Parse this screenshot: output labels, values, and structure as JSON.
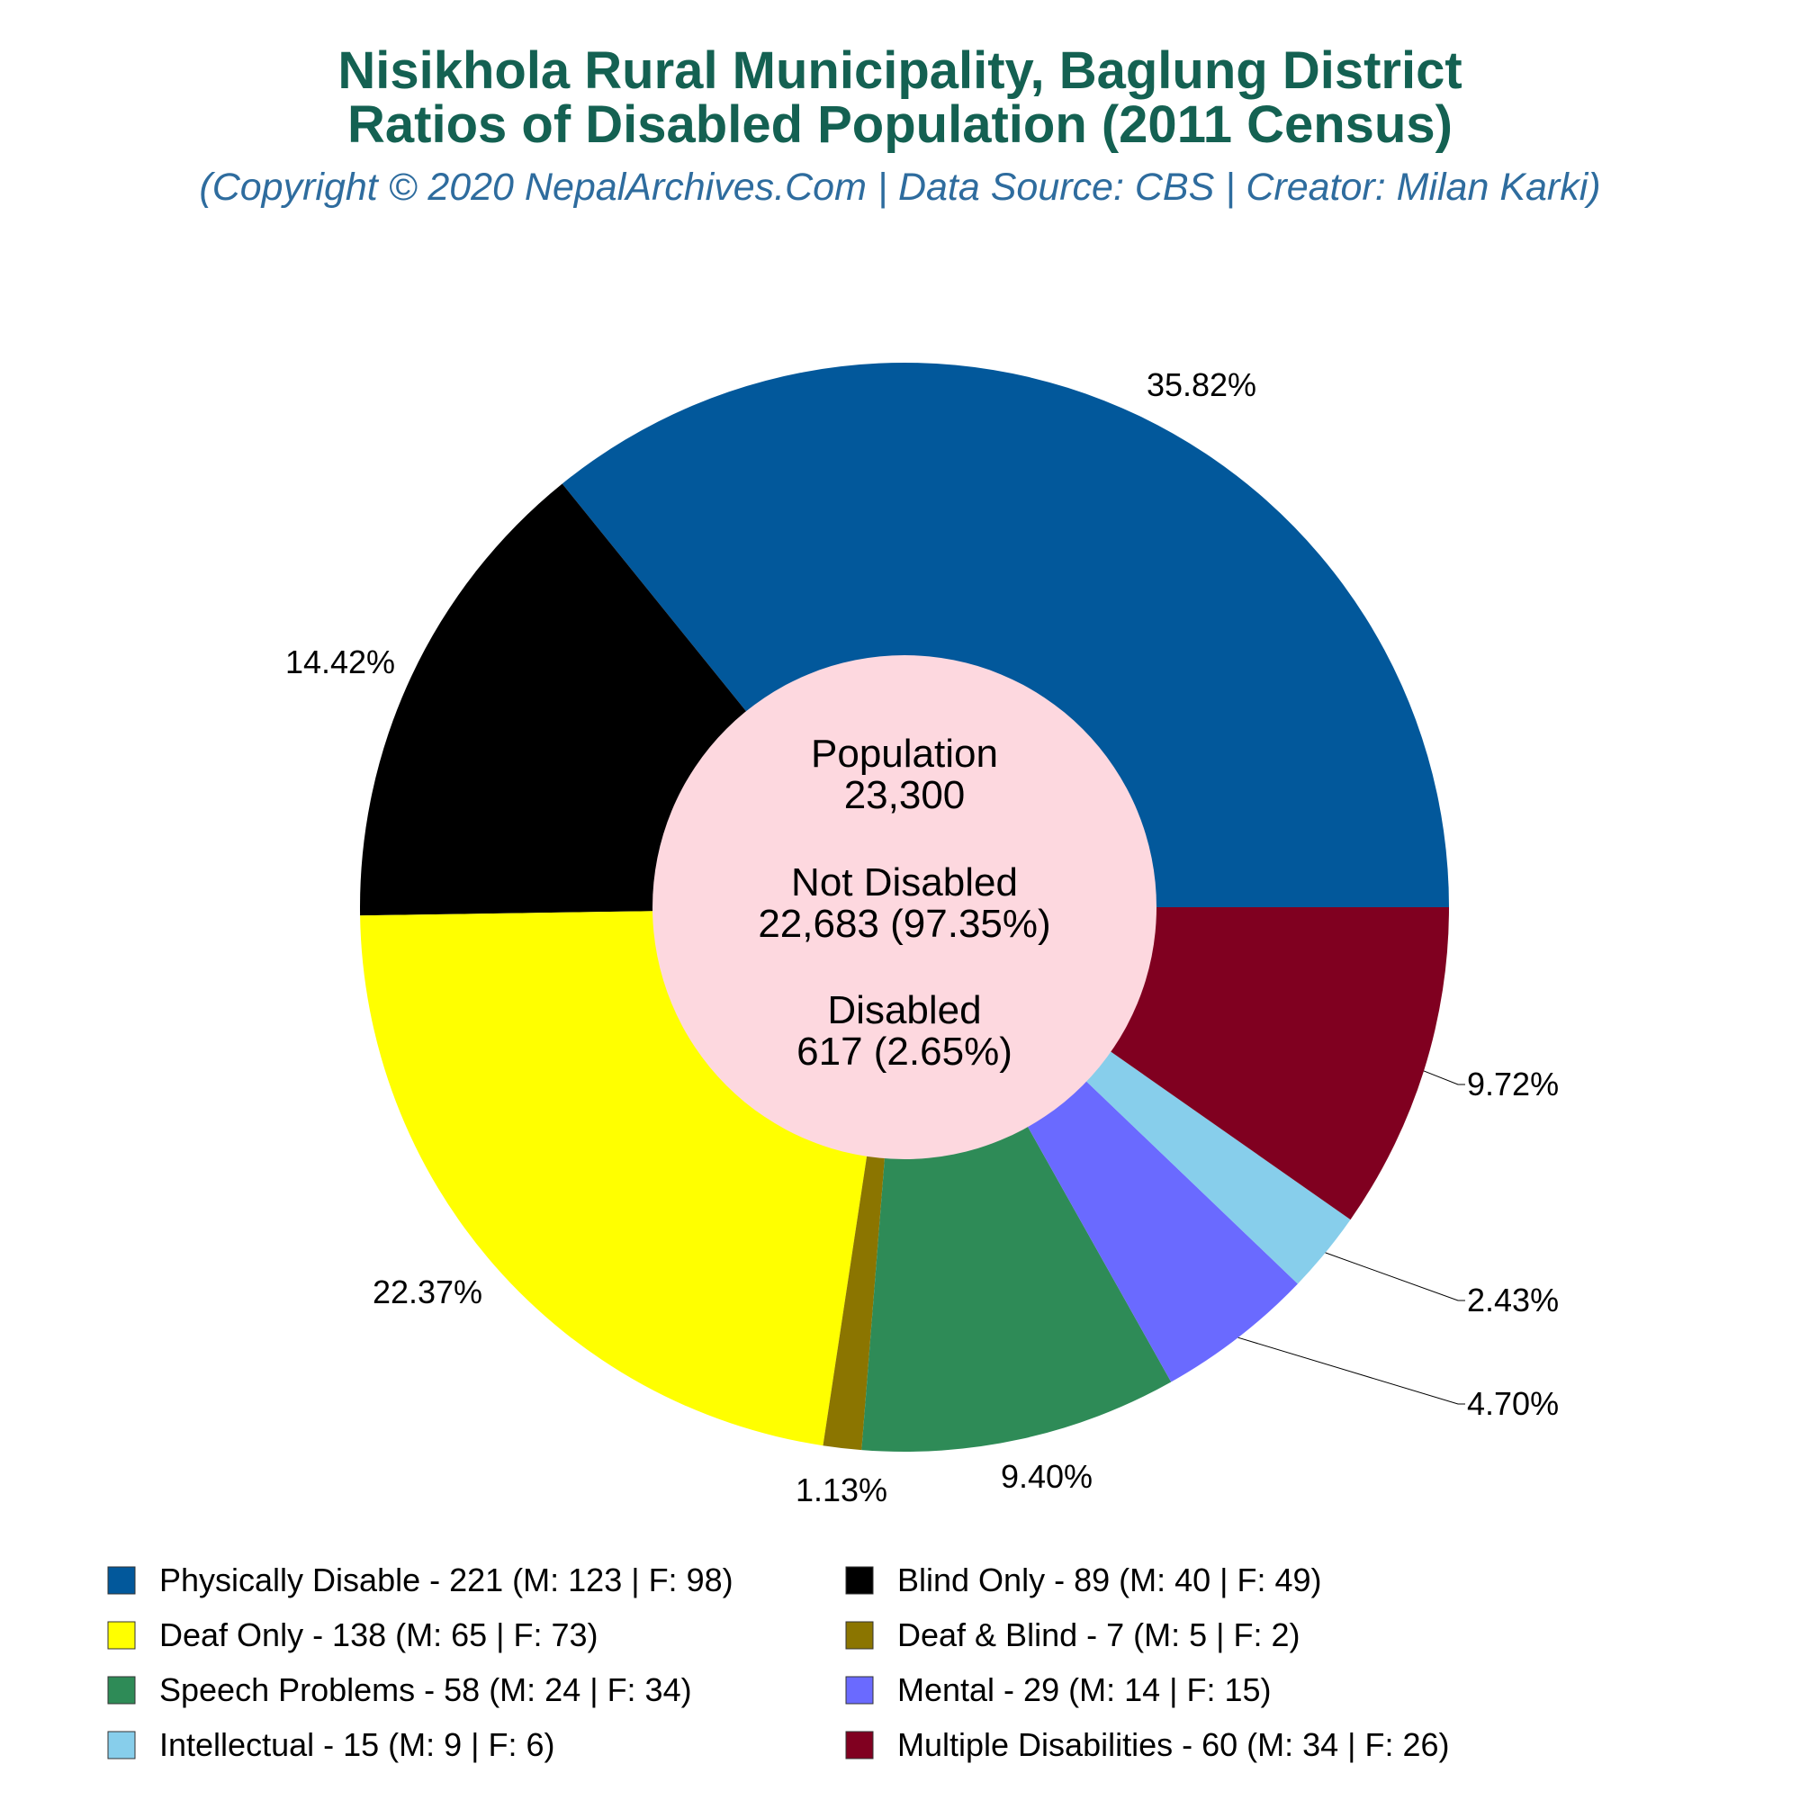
{
  "chart_data": {
    "type": "pie",
    "title_line1": "Nisikhola Rural Municipality, Baglung District",
    "title_line2": "Ratios of Disabled Population (2011 Census)",
    "subtitle": "(Copyright © 2020 NepalArchives.Com | Data Source: CBS | Creator: Milan Karki)",
    "center": {
      "population_label": "Population",
      "population_value": "23,300",
      "not_disabled_label": "Not Disabled",
      "not_disabled_value": "22,683 (97.35%)",
      "disabled_label": "Disabled",
      "disabled_value": "617 (2.65%)"
    },
    "slices": [
      {
        "name": "Physically Disable",
        "value": 221,
        "pct": "35.82%",
        "color": "#02589b",
        "legend": "Physically Disable - 221 (M: 123 | F: 98)"
      },
      {
        "name": "Blind Only",
        "value": 89,
        "pct": "14.42%",
        "color": "#000000",
        "legend": "Blind Only - 89 (M: 40 | F: 49)"
      },
      {
        "name": "Deaf Only",
        "value": 138,
        "pct": "22.37%",
        "color": "#ffff00",
        "legend": "Deaf Only - 138 (M: 65 | F: 73)"
      },
      {
        "name": "Deaf & Blind",
        "value": 7,
        "pct": "1.13%",
        "color": "#8b7500",
        "legend": "Deaf & Blind - 7 (M: 5 | F: 2)"
      },
      {
        "name": "Speech Problems",
        "value": 58,
        "pct": "9.40%",
        "color": "#2e8b57",
        "legend": "Speech Problems - 58 (M: 24 | F: 34)"
      },
      {
        "name": "Mental",
        "value": 29,
        "pct": "4.70%",
        "color": "#6a6aff",
        "legend": "Mental - 29 (M: 14 | F: 15)"
      },
      {
        "name": "Intellectual",
        "value": 15,
        "pct": "2.43%",
        "color": "#87ceeb",
        "legend": "Intellectual - 15 (M: 9 | F: 6)"
      },
      {
        "name": "Multiple Disabilities",
        "value": 60,
        "pct": "9.72%",
        "color": "#800020",
        "legend": "Multiple Disabilities - 60 (M: 34 | F: 26)"
      }
    ],
    "center_color": "#fdd8df",
    "legend_placement": "bottom"
  }
}
